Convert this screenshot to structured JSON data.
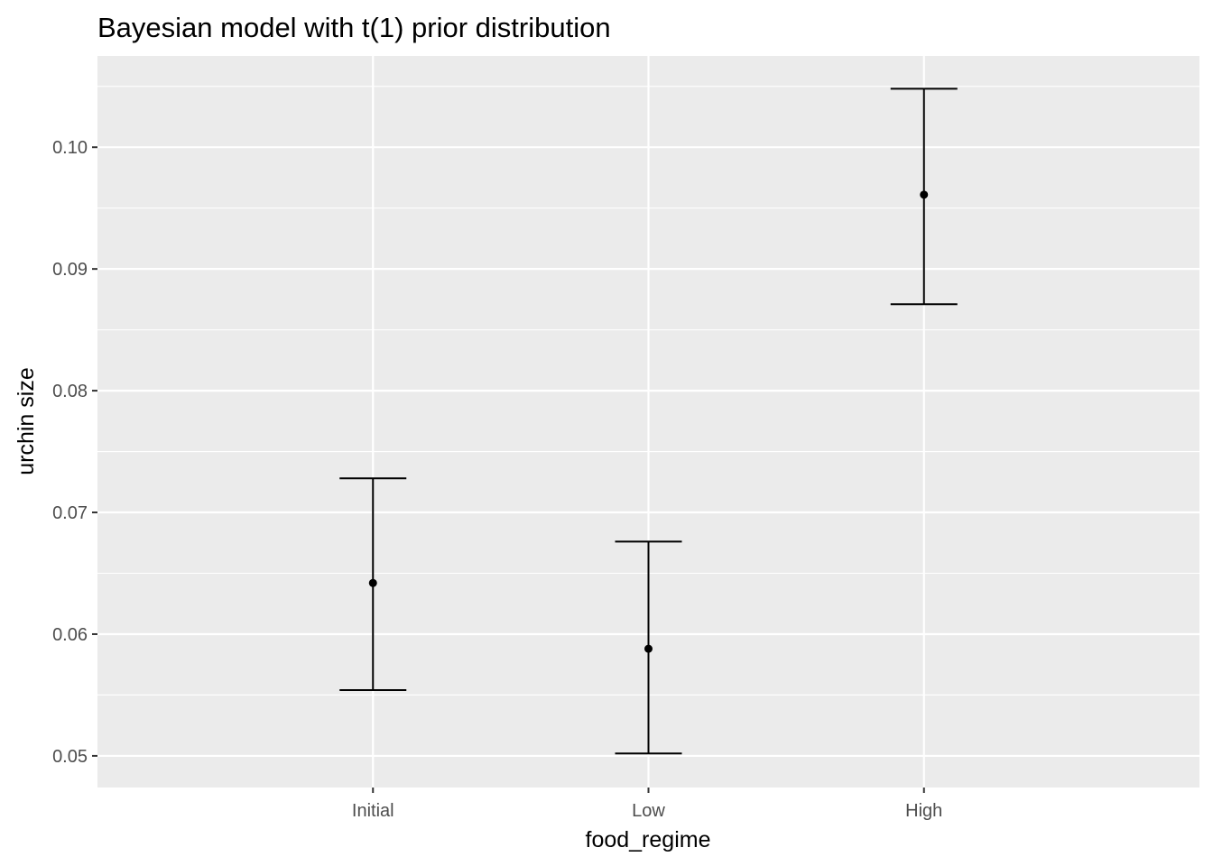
{
  "chart_data": {
    "type": "pointrange",
    "title": "Bayesian model with t(1) prior distribution",
    "xlabel": "food_regime",
    "ylabel": "urchin size",
    "categories": [
      "Initial",
      "Low",
      "High"
    ],
    "series": [
      {
        "estimate": [
          0.0642,
          0.0588,
          0.0961
        ],
        "lower": [
          0.0554,
          0.0502,
          0.0871
        ],
        "upper": [
          0.0728,
          0.0676,
          0.1048
        ]
      }
    ],
    "ylim": [
      0.0474,
      0.1075
    ],
    "yticks": [
      0.05,
      0.06,
      0.07,
      0.08,
      0.09,
      0.1
    ],
    "ytick_labels": [
      "0.05",
      "0.06",
      "0.07",
      "0.08",
      "0.09",
      "0.10"
    ],
    "grid": true,
    "legend": "none",
    "colors": {
      "panel_background": "#ebebeb",
      "grid_major": "#ffffff",
      "marks": "#000000",
      "tick_text": "#4d4d4d"
    }
  }
}
